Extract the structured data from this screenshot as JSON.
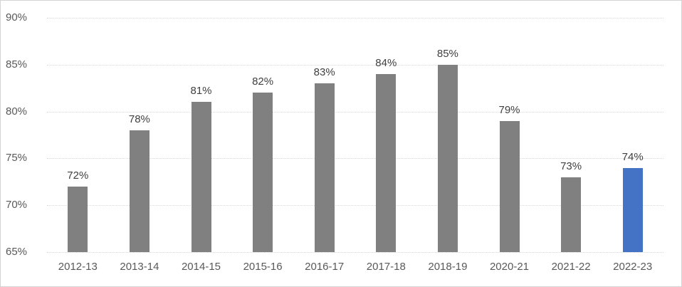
{
  "chart_data": {
    "type": "bar",
    "title": "",
    "xlabel": "",
    "ylabel": "",
    "categories": [
      "2012-13",
      "2013-14",
      "2014-15",
      "2015-16",
      "2016-17",
      "2017-18",
      "2018-19",
      "2020-21",
      "2021-22",
      "2022-23"
    ],
    "values": [
      72,
      78,
      81,
      82,
      83,
      84,
      85,
      79,
      73,
      74
    ],
    "value_labels": [
      "72%",
      "78%",
      "81%",
      "82%",
      "83%",
      "84%",
      "85%",
      "79%",
      "73%",
      "74%"
    ],
    "yticks": [
      65,
      70,
      75,
      80,
      85,
      90
    ],
    "ytick_labels": [
      "65%",
      "70%",
      "75%",
      "80%",
      "85%",
      "90%"
    ],
    "ylim": [
      65,
      90
    ],
    "grid": "horizontal-dotted",
    "legend": "none",
    "colors": {
      "bar_default": "#808080",
      "bar_highlight": "#4472c4",
      "highlight_index": 9,
      "gridline": "#d9d9d9",
      "axis_label": "#595959",
      "data_label": "#404040",
      "frame_border": "#d4d4d4",
      "background": "#ffffff"
    }
  }
}
